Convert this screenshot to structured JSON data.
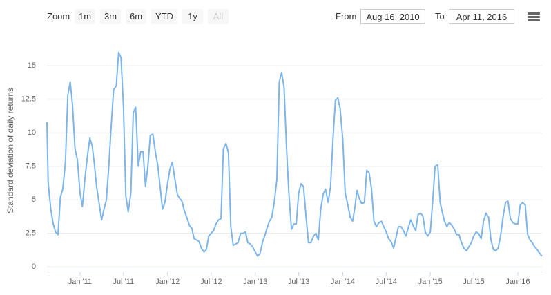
{
  "controls": {
    "zoom_label": "Zoom",
    "buttons": [
      "1m",
      "3m",
      "6m",
      "YTD",
      "1y",
      "All"
    ],
    "disabled_button": "All",
    "from_label": "From",
    "from": "Aug 16, 2010",
    "to_label": "To",
    "to": "Apr 11, 2016"
  },
  "chart_data": {
    "type": "line",
    "y_label": "Standard deviation of daily returns",
    "color": "#7cb5ec",
    "grid": true,
    "xlim": [
      "2010-08-16",
      "2016-04-11"
    ],
    "xticks": [
      {
        "value": "2011-01-01",
        "label": "Jan '11"
      },
      {
        "value": "2011-07-01",
        "label": "Jul '11"
      },
      {
        "value": "2012-01-01",
        "label": "Jan '12"
      },
      {
        "value": "2012-07-01",
        "label": "Jul '12"
      },
      {
        "value": "2013-01-01",
        "label": "Jan '13"
      },
      {
        "value": "2013-07-01",
        "label": "Jul '13"
      },
      {
        "value": "2014-01-01",
        "label": "Jan '14"
      },
      {
        "value": "2014-07-01",
        "label": "Jul '14"
      },
      {
        "value": "2015-01-01",
        "label": "Jan '15"
      },
      {
        "value": "2015-07-01",
        "label": "Jul '15"
      },
      {
        "value": "2016-01-01",
        "label": "Jan '16"
      }
    ],
    "ylim": [
      -0.35,
      17.5
    ],
    "yticks": [
      0,
      2.5,
      5,
      7.5,
      10,
      12.5,
      15
    ],
    "x": [
      "2010-08-16",
      "2010-08-21",
      "2010-09-01",
      "2010-09-11",
      "2010-09-21",
      "2010-10-01",
      "2010-10-11",
      "2010-10-21",
      "2010-11-01",
      "2010-11-11",
      "2010-11-21",
      "2010-12-01",
      "2010-12-11",
      "2010-12-21",
      "2011-01-01",
      "2011-01-11",
      "2011-01-21",
      "2011-02-01",
      "2011-02-11",
      "2011-02-21",
      "2011-03-01",
      "2011-03-11",
      "2011-03-21",
      "2011-04-01",
      "2011-04-11",
      "2011-04-21",
      "2011-05-01",
      "2011-05-11",
      "2011-05-21",
      "2011-06-01",
      "2011-06-11",
      "2011-06-21",
      "2011-07-01",
      "2011-07-11",
      "2011-07-21",
      "2011-08-01",
      "2011-08-11",
      "2011-08-21",
      "2011-09-01",
      "2011-09-11",
      "2011-09-21",
      "2011-10-01",
      "2011-10-11",
      "2011-10-21",
      "2011-11-01",
      "2011-11-11",
      "2011-11-21",
      "2011-12-01",
      "2011-12-11",
      "2011-12-21",
      "2012-01-01",
      "2012-01-11",
      "2012-01-21",
      "2012-02-01",
      "2012-02-11",
      "2012-02-21",
      "2012-03-01",
      "2012-03-11",
      "2012-03-21",
      "2012-04-01",
      "2012-04-11",
      "2012-04-21",
      "2012-05-01",
      "2012-05-11",
      "2012-05-21",
      "2012-06-01",
      "2012-06-11",
      "2012-06-21",
      "2012-07-01",
      "2012-07-11",
      "2012-07-21",
      "2012-08-01",
      "2012-08-11",
      "2012-08-21",
      "2012-09-01",
      "2012-09-11",
      "2012-09-21",
      "2012-10-01",
      "2012-10-11",
      "2012-10-21",
      "2012-11-01",
      "2012-11-11",
      "2012-11-21",
      "2012-12-01",
      "2012-12-11",
      "2012-12-21",
      "2013-01-01",
      "2013-01-11",
      "2013-01-21",
      "2013-02-01",
      "2013-02-11",
      "2013-02-21",
      "2013-03-01",
      "2013-03-11",
      "2013-03-21",
      "2013-04-01",
      "2013-04-11",
      "2013-04-21",
      "2013-05-01",
      "2013-05-11",
      "2013-05-21",
      "2013-06-01",
      "2013-06-11",
      "2013-06-21",
      "2013-07-01",
      "2013-07-11",
      "2013-07-21",
      "2013-08-01",
      "2013-08-11",
      "2013-08-21",
      "2013-09-01",
      "2013-09-11",
      "2013-09-21",
      "2013-10-01",
      "2013-10-11",
      "2013-10-21",
      "2013-11-01",
      "2013-11-11",
      "2013-11-21",
      "2013-12-01",
      "2013-12-11",
      "2013-12-21",
      "2014-01-01",
      "2014-01-11",
      "2014-01-21",
      "2014-02-01",
      "2014-02-11",
      "2014-02-21",
      "2014-03-01",
      "2014-03-11",
      "2014-03-21",
      "2014-04-01",
      "2014-04-11",
      "2014-04-21",
      "2014-05-01",
      "2014-05-11",
      "2014-05-21",
      "2014-06-01",
      "2014-06-11",
      "2014-06-21",
      "2014-07-01",
      "2014-07-11",
      "2014-07-21",
      "2014-08-01",
      "2014-08-11",
      "2014-08-21",
      "2014-09-01",
      "2014-09-11",
      "2014-09-21",
      "2014-10-01",
      "2014-10-11",
      "2014-10-21",
      "2014-11-01",
      "2014-11-11",
      "2014-11-21",
      "2014-12-01",
      "2014-12-11",
      "2014-12-21",
      "2015-01-01",
      "2015-01-11",
      "2015-01-21",
      "2015-02-01",
      "2015-02-11",
      "2015-02-21",
      "2015-03-01",
      "2015-03-11",
      "2015-03-21",
      "2015-04-01",
      "2015-04-11",
      "2015-04-21",
      "2015-05-01",
      "2015-05-11",
      "2015-05-21",
      "2015-06-01",
      "2015-06-11",
      "2015-06-21",
      "2015-07-01",
      "2015-07-11",
      "2015-07-21",
      "2015-08-01",
      "2015-08-11",
      "2015-08-21",
      "2015-09-01",
      "2015-09-11",
      "2015-09-21",
      "2015-10-01",
      "2015-10-11",
      "2015-10-21",
      "2015-11-01",
      "2015-11-11",
      "2015-11-21",
      "2015-12-01",
      "2015-12-11",
      "2015-12-21",
      "2016-01-01",
      "2016-01-11",
      "2016-01-21",
      "2016-02-01",
      "2016-02-11",
      "2016-02-21",
      "2016-03-01",
      "2016-03-11",
      "2016-03-21",
      "2016-04-01",
      "2016-04-11"
    ],
    "values": [
      10.8,
      6.3,
      4.3,
      3.2,
      2.6,
      2.4,
      5.2,
      5.8,
      7.8,
      12.8,
      13.8,
      12.0,
      8.8,
      8.0,
      5.5,
      4.5,
      6.5,
      8.3,
      9.6,
      9.0,
      7.8,
      6.0,
      4.8,
      3.5,
      4.3,
      5.0,
      7.5,
      10.5,
      13.2,
      13.5,
      16.0,
      15.6,
      12.0,
      5.3,
      4.1,
      5.5,
      11.5,
      11.9,
      7.5,
      8.6,
      8.6,
      6.0,
      7.5,
      9.8,
      9.9,
      8.6,
      7.6,
      6.0,
      4.3,
      4.8,
      6.2,
      7.3,
      7.8,
      6.5,
      5.4,
      5.1,
      4.9,
      4.2,
      3.7,
      3.1,
      2.9,
      2.1,
      2.0,
      1.9,
      1.4,
      1.1,
      1.3,
      2.3,
      2.5,
      2.7,
      3.2,
      3.5,
      3.6,
      8.8,
      9.2,
      8.5,
      3.0,
      1.6,
      1.7,
      1.8,
      2.5,
      2.5,
      2.6,
      1.8,
      1.7,
      1.5,
      1.1,
      0.8,
      1.0,
      1.9,
      2.4,
      3.0,
      3.4,
      3.7,
      4.8,
      6.5,
      13.8,
      14.5,
      13.4,
      9.0,
      5.5,
      2.8,
      3.2,
      3.2,
      5.5,
      6.2,
      6.0,
      3.7,
      1.8,
      1.8,
      2.3,
      2.5,
      2.0,
      4.3,
      5.4,
      5.8,
      4.8,
      6.0,
      9.5,
      12.4,
      12.6,
      11.8,
      9.5,
      5.5,
      4.7,
      3.7,
      3.4,
      4.5,
      5.7,
      5.1,
      4.7,
      4.8,
      7.2,
      7.0,
      5.8,
      3.4,
      3.0,
      3.3,
      3.4,
      3.0,
      2.6,
      2.1,
      1.9,
      1.4,
      2.2,
      3.0,
      3.0,
      2.7,
      2.3,
      2.9,
      3.5,
      3.1,
      2.7,
      3.9,
      4.0,
      3.8,
      2.6,
      2.3,
      2.6,
      4.9,
      7.5,
      7.6,
      4.8,
      4.0,
      3.4,
      3.0,
      3.3,
      3.1,
      2.8,
      2.4,
      2.4,
      1.8,
      1.4,
      1.2,
      1.5,
      1.8,
      2.3,
      2.6,
      2.5,
      2.1,
      3.4,
      4.0,
      3.7,
      2.0,
      1.3,
      1.2,
      1.4,
      2.3,
      3.8,
      4.8,
      4.9,
      3.6,
      3.3,
      3.2,
      3.2,
      4.6,
      4.8,
      4.6,
      2.4,
      2.0,
      1.8,
      1.5,
      1.3,
      1.0,
      0.8
    ]
  }
}
